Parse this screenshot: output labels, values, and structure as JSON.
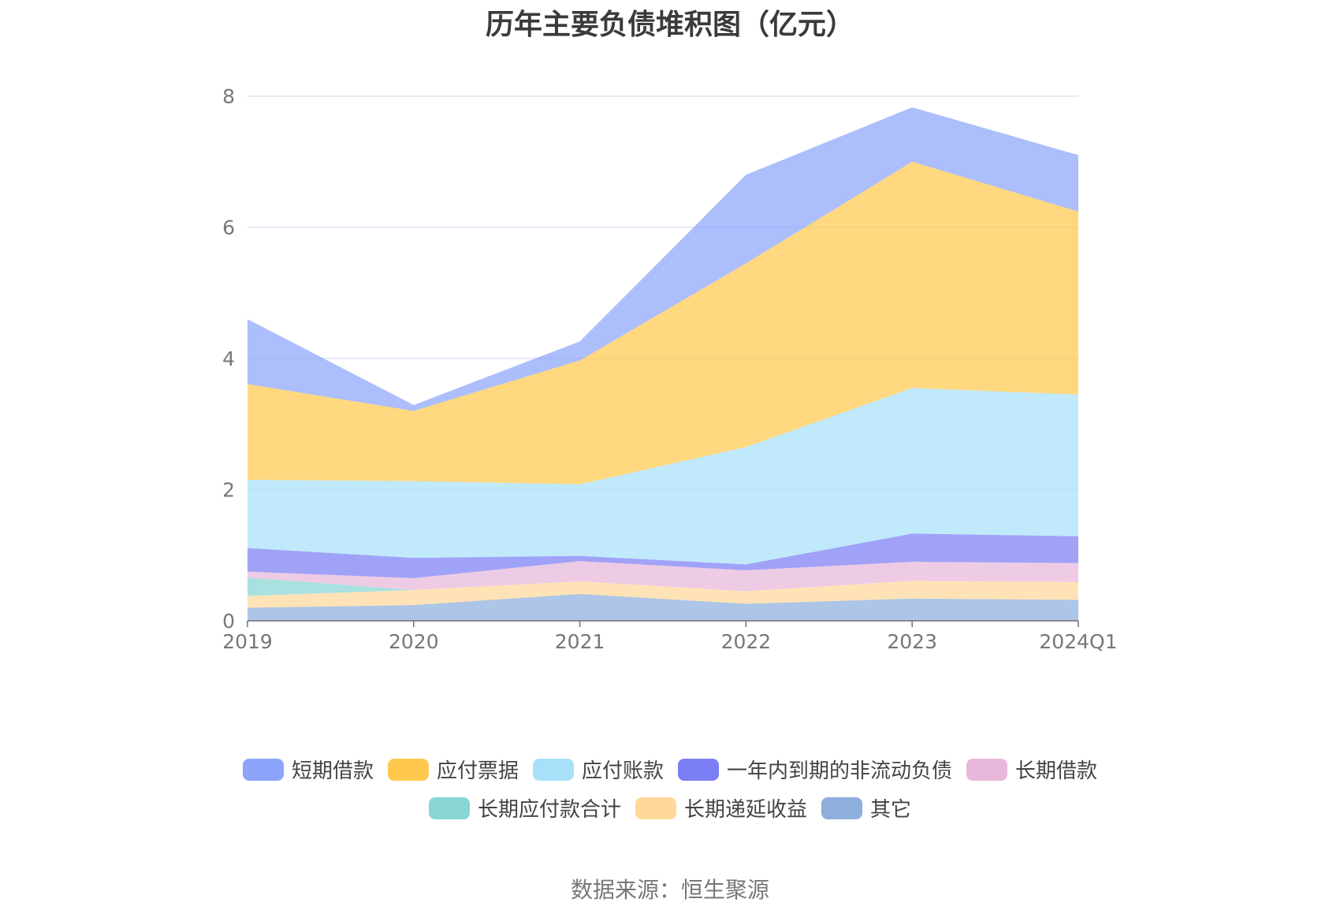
{
  "chart_data": {
    "type": "area",
    "title": "历年主要负债堆积图（亿元）",
    "stacked": true,
    "categories": [
      "2019",
      "2020",
      "2021",
      "2022",
      "2023",
      "2024Q1"
    ],
    "ylim": [
      0,
      8
    ],
    "yticks": [
      "0",
      "2",
      "4",
      "6",
      "8"
    ],
    "grid": true,
    "legend_position": "bottom",
    "series": [
      {
        "name": "其它",
        "color": "#8eaedc",
        "values": [
          0.2,
          0.24,
          0.41,
          0.26,
          0.34,
          0.32
        ]
      },
      {
        "name": "长期递延收益",
        "color": "#ffd89a",
        "values": [
          0.18,
          0.23,
          0.19,
          0.19,
          0.27,
          0.27
        ]
      },
      {
        "name": "长期应付款合计",
        "color": "#88d6d6",
        "values": [
          0.28,
          0.0,
          0.0,
          0.0,
          0.0,
          0.0
        ]
      },
      {
        "name": "长期借款",
        "color": "#e8b7d9",
        "values": [
          0.09,
          0.18,
          0.31,
          0.32,
          0.29,
          0.29
        ]
      },
      {
        "name": "一年内到期的非流动负债",
        "color": "#7b7ef5",
        "values": [
          0.36,
          0.31,
          0.08,
          0.09,
          0.43,
          0.41
        ]
      },
      {
        "name": "应付账款",
        "color": "#a8e0fa",
        "values": [
          1.04,
          1.17,
          1.09,
          1.79,
          2.22,
          2.16
        ]
      },
      {
        "name": "应付票据",
        "color": "#ffc94d",
        "values": [
          1.46,
          1.07,
          1.89,
          2.8,
          3.45,
          2.79
        ]
      },
      {
        "name": "短期借款",
        "color": "#8ca5fa",
        "values": [
          0.99,
          0.09,
          0.29,
          1.35,
          0.83,
          0.86
        ]
      }
    ],
    "legend_order": [
      "短期借款",
      "应付票据",
      "应付账款",
      "一年内到期的非流动负债",
      "长期借款",
      "长期应付款合计",
      "长期递延收益",
      "其它"
    ],
    "source": "数据来源：恒生聚源"
  }
}
